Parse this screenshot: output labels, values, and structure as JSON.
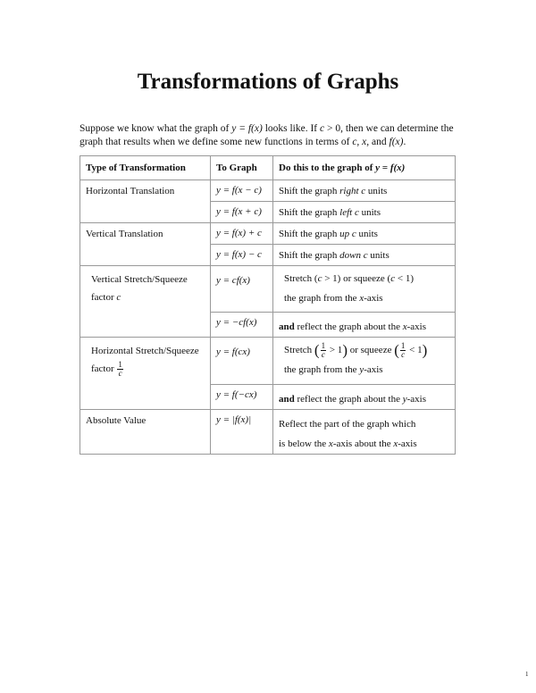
{
  "title": "Transformations of Graphs",
  "intro": [
    "Suppose we know what the graph of ",
    {
      "text": "y = f(x)",
      "style": "i"
    },
    " looks like. If ",
    {
      "text": "c",
      "style": "i"
    },
    " > 0, then we can determine the graph that results when we define some new functions in terms of ",
    {
      "text": "c, x,",
      "style": "i"
    },
    " and ",
    {
      "text": "f(x)",
      "style": "i"
    },
    "."
  ],
  "table": {
    "headers": [
      [
        "Type of Transformation"
      ],
      [
        "To Graph"
      ],
      [
        "Do this to the graph of ",
        {
          "text": "y = f(x)",
          "style": "i"
        }
      ]
    ],
    "groups": [
      {
        "type": [
          [
            "Horizontal Translation"
          ]
        ],
        "rows": [
          {
            "formula": "y = f(x − c)",
            "desc": [
              [
                "Shift the graph ",
                {
                  "text": "right c",
                  "style": "i"
                },
                " units"
              ]
            ]
          },
          {
            "formula": "y = f(x + c)",
            "desc": [
              [
                "Shift the graph ",
                {
                  "text": "left c",
                  "style": "i"
                },
                " units"
              ]
            ]
          }
        ]
      },
      {
        "type": [
          [
            "Vertical Translation"
          ]
        ],
        "rows": [
          {
            "formula": "y = f(x) + c",
            "desc": [
              [
                "Shift the graph ",
                {
                  "text": "up c",
                  "style": "i"
                },
                " units"
              ]
            ]
          },
          {
            "formula": "y = f(x) − c",
            "desc": [
              [
                "Shift the graph ",
                {
                  "text": "down c",
                  "style": "i"
                },
                " units"
              ]
            ]
          }
        ]
      },
      {
        "type": [
          [
            "Vertical Stretch/Squeeze"
          ],
          [
            "factor ",
            {
              "text": "c",
              "style": "i"
            }
          ]
        ],
        "rows": [
          {
            "formula": "y = cf(x)",
            "desc": [
              [
                "Stretch (",
                {
                  "text": "c",
                  "style": "i"
                },
                " > 1) or squeeze (",
                {
                  "text": "c",
                  "style": "i"
                },
                " < 1)"
              ],
              [
                "the graph from the ",
                {
                  "text": "x",
                  "style": "i"
                },
                "-axis"
              ]
            ]
          },
          {
            "formula": "y = −cf(x)",
            "desc": [
              [
                {
                  "text": "and",
                  "style": "b"
                },
                " reflect the graph about the ",
                {
                  "text": "x",
                  "style": "i"
                },
                "-axis"
              ]
            ]
          }
        ]
      },
      {
        "type": [
          [
            "Horizontal Stretch/Squeeze"
          ],
          [
            "factor ",
            {
              "frac": [
                "1",
                "c"
              ]
            }
          ]
        ],
        "rows": [
          {
            "formula": "y = f(cx)",
            "desc": [
              [
                "Stretch ",
                {
                  "paren": "("
                },
                {
                  "frac": [
                    "1",
                    "c"
                  ]
                },
                " > 1",
                {
                  "paren": ")"
                },
                " or squeeze ",
                {
                  "paren": "("
                },
                {
                  "frac": [
                    "1",
                    "c"
                  ]
                },
                " < 1",
                {
                  "paren": ")"
                }
              ],
              [
                "the graph from the ",
                {
                  "text": "y",
                  "style": "i"
                },
                "-axis"
              ]
            ]
          },
          {
            "formula": "y = f(−cx)",
            "desc": [
              [
                {
                  "text": "and",
                  "style": "b"
                },
                " reflect the graph about the ",
                {
                  "text": "y",
                  "style": "i"
                },
                "-axis"
              ]
            ]
          }
        ]
      },
      {
        "type": [
          [
            "Absolute Value"
          ]
        ],
        "rows": [
          {
            "formula": "y = |f(x)|",
            "desc": [
              [
                "Reflect the part of the graph which"
              ],
              [
                "is below the ",
                {
                  "text": "x",
                  "style": "i"
                },
                "-axis about the ",
                {
                  "text": "x",
                  "style": "i"
                },
                "-axis"
              ]
            ]
          }
        ]
      }
    ]
  },
  "page_number": "1"
}
